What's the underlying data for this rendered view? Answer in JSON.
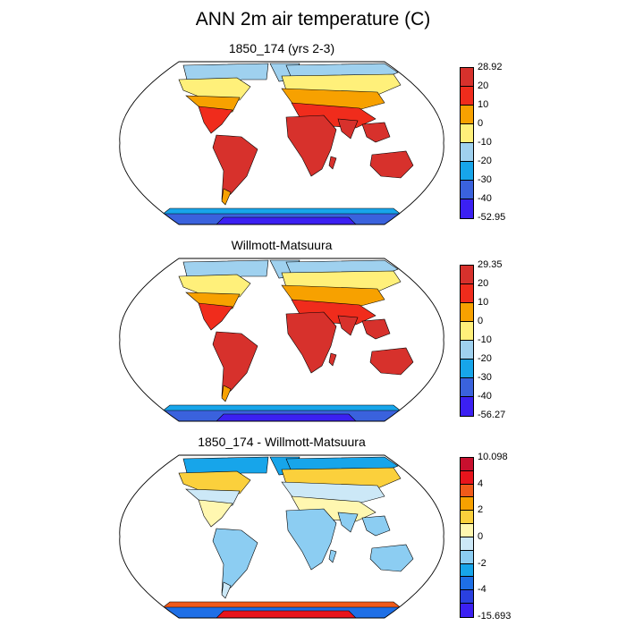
{
  "title": "ANN 2m air temperature (C)",
  "panels": [
    {
      "title": "1850_174 (yrs 2-3)",
      "colorbar": {
        "labels": [
          "28.92",
          "20",
          "10",
          "0",
          "-10",
          "-20",
          "-30",
          "-40",
          "-52.95"
        ],
        "colors": [
          "#d7312c",
          "#f02c1c",
          "#f7a100",
          "#fff07a",
          "#9fd1ef",
          "#17a5ea",
          "#3a62dd",
          "#3b20f2"
        ]
      },
      "map_colors": {
        "tropics": "#d7312c",
        "midlat": "#f02c1c",
        "subpolar": "#f7a100",
        "polar": "#fff07a",
        "arctic": "#9fd1ef",
        "ice_edge": "#17a5ea",
        "ice": "#3a62dd",
        "ice_deep": "#3b20f2"
      }
    },
    {
      "title": "Willmott-Matsuura",
      "colorbar": {
        "labels": [
          "29.35",
          "20",
          "10",
          "0",
          "-10",
          "-20",
          "-30",
          "-40",
          "-56.27"
        ],
        "colors": [
          "#d7312c",
          "#f02c1c",
          "#f7a100",
          "#fff07a",
          "#9fd1ef",
          "#17a5ea",
          "#3a62dd",
          "#3b20f2"
        ]
      },
      "map_colors": {
        "tropics": "#d7312c",
        "midlat": "#f02c1c",
        "subpolar": "#f7a100",
        "polar": "#fff07a",
        "arctic": "#9fd1ef",
        "ice_edge": "#17a5ea",
        "ice": "#3a62dd",
        "ice_deep": "#3b20f2"
      }
    },
    {
      "title": "1850_174 - Willmott-Matsuura",
      "colorbar": {
        "labels": [
          "10.098",
          "",
          "4",
          "",
          "2",
          "",
          "0",
          "",
          "-2",
          "",
          "-4",
          "",
          "-15.693"
        ],
        "colors": [
          "#c8102e",
          "#e8141c",
          "#f05a1a",
          "#f7a100",
          "#fbd03c",
          "#fff7b0",
          "#cce8f7",
          "#8ccdf2",
          "#17a5ea",
          "#1e6fe6",
          "#2a40e0",
          "#3b20f2"
        ]
      },
      "map_colors": {
        "tropics": "#8ccdf2",
        "midlat": "#fff7b0",
        "subpolar": "#cce8f7",
        "polar": "#fbd03c",
        "arctic": "#17a5ea",
        "ice_edge": "#f05a1a",
        "ice": "#1e6fe6",
        "ice_deep": "#e8141c"
      }
    }
  ]
}
